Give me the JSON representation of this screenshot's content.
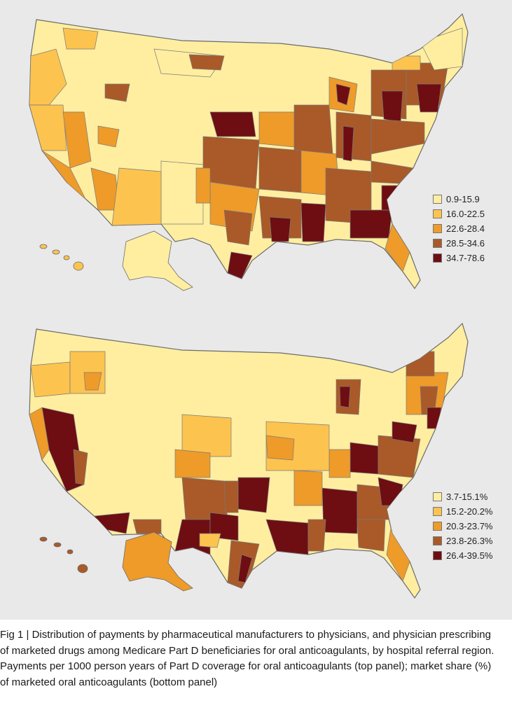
{
  "panels": [
    {
      "id": "top",
      "legend": [
        {
          "label": "0.9-15.9",
          "color": "#ffeea0"
        },
        {
          "label": "16.0-22.5",
          "color": "#fcc34f"
        },
        {
          "label": "22.6-28.4",
          "color": "#ee9b2a"
        },
        {
          "label": "28.5-34.6",
          "color": "#a95a28"
        },
        {
          "label": "34.7-78.6",
          "color": "#6e0e12"
        }
      ]
    },
    {
      "id": "bottom",
      "legend": [
        {
          "label": "3.7-15.1%",
          "color": "#ffeea0"
        },
        {
          "label": "15.2-20.2%",
          "color": "#fcc34f"
        },
        {
          "label": "20.3-23.7%",
          "color": "#ee9b2a"
        },
        {
          "label": "23.8-26.3%",
          "color": "#a95a28"
        },
        {
          "label": "26.4-39.5%",
          "color": "#6e0e12"
        }
      ]
    }
  ],
  "caption": {
    "label": "Fig 1 |",
    "text": "Distribution of payments by pharmaceutical manufacturers to physicians, and physician prescribing of marketed drugs among Medicare Part D beneficiaries for oral anticoagulants, by hospital referral region. Payments per 1000 person years of Part D coverage for oral anticoagulants (top panel); market share (%) of marketed oral anticoagulants (bottom panel)"
  }
}
